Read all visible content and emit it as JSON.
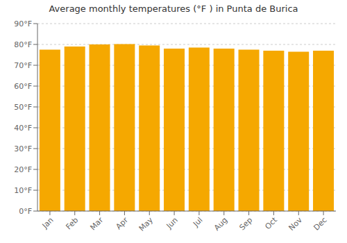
{
  "chart_data": {
    "type": "bar",
    "title": "Average monthly temperatures (°F ) in Punta de Burica",
    "categories": [
      "Jan",
      "Feb",
      "Mar",
      "Apr",
      "May",
      "Jun",
      "Jul",
      "Aug",
      "Sep",
      "Oct",
      "Nov",
      "Dec"
    ],
    "values": [
      77.5,
      79.0,
      80.0,
      80.2,
      79.5,
      78.0,
      78.5,
      78.0,
      77.5,
      77.0,
      76.5,
      77.0
    ],
    "color": "#F5A800",
    "ylim": [
      0,
      90
    ],
    "yticks": [
      {
        "value": 0,
        "label": "0°F"
      },
      {
        "value": 10,
        "label": "10°F"
      },
      {
        "value": 20,
        "label": "20°F"
      },
      {
        "value": 30,
        "label": "30°F"
      },
      {
        "value": 40,
        "label": "40°F"
      },
      {
        "value": 50,
        "label": "50°F"
      },
      {
        "value": 60,
        "label": "60°F"
      },
      {
        "value": 70,
        "label": "70°F"
      },
      {
        "value": 80,
        "label": "80°F"
      },
      {
        "value": 90,
        "label": "90°F"
      }
    ],
    "grid": true
  }
}
